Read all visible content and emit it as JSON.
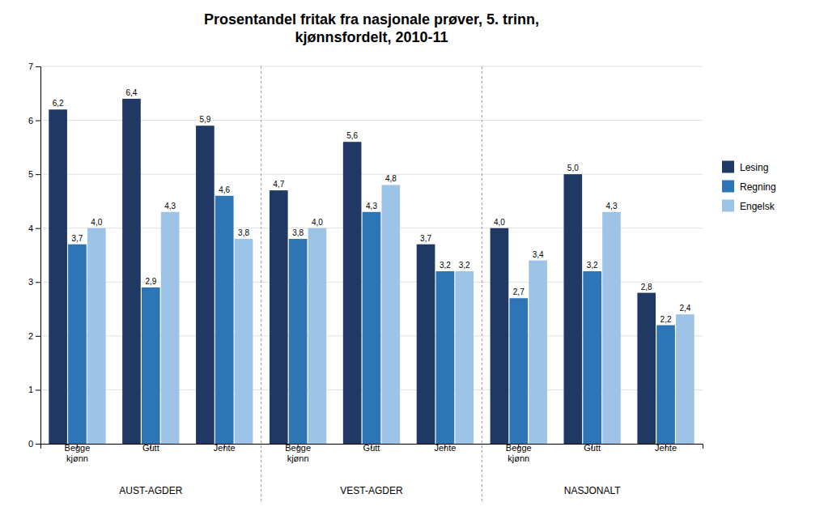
{
  "chart_data": {
    "type": "bar",
    "title": "Prosentandel fritak fra nasjonale prøver, 5. trinn,\nkjønnsfordelt, 2010-11",
    "categories": [
      "Begge\nkjønn",
      "Gutt",
      "Jente",
      "Begge\nkjønn",
      "Gutt",
      "Jente",
      "Begge\nkjønn",
      "Gutt",
      "Jente"
    ],
    "annotations": [
      "AUST-AGDER",
      "VEST-AGDER",
      "NASJONALT"
    ],
    "series": [
      {
        "name": "Lesing",
        "color": "#1F3864",
        "values": [
          6.2,
          6.4,
          5.9,
          4.7,
          5.6,
          3.7,
          4.0,
          5.0,
          2.8
        ],
        "value_labels": [
          "6,2",
          "6,4",
          "5,9",
          "4,7",
          "5,6",
          "3,7",
          "4,0",
          "5,0",
          "2,8"
        ]
      },
      {
        "name": "Regning",
        "color": "#2E75B6",
        "values": [
          3.7,
          2.9,
          4.6,
          3.8,
          4.3,
          3.2,
          2.7,
          3.2,
          2.2
        ],
        "value_labels": [
          "3,7",
          "2,9",
          "4,6",
          "3,8",
          "4,3",
          "3,2",
          "2,7",
          "3,2",
          "2,2"
        ]
      },
      {
        "name": "Engelsk",
        "color": "#9DC3E6",
        "values": [
          4.0,
          4.3,
          3.8,
          4.0,
          4.8,
          3.2,
          3.4,
          4.3,
          2.4
        ],
        "value_labels": [
          "4,0",
          "4,3",
          "3,8",
          "4,0",
          "4,8",
          "3,2",
          "3,4",
          "4,3",
          "2,4"
        ]
      }
    ],
    "ylim": [
      0,
      7
    ],
    "yticks": [
      0,
      1,
      2,
      3,
      4,
      5,
      6,
      7
    ],
    "grid": true,
    "legend": "right",
    "data_labels": true
  }
}
